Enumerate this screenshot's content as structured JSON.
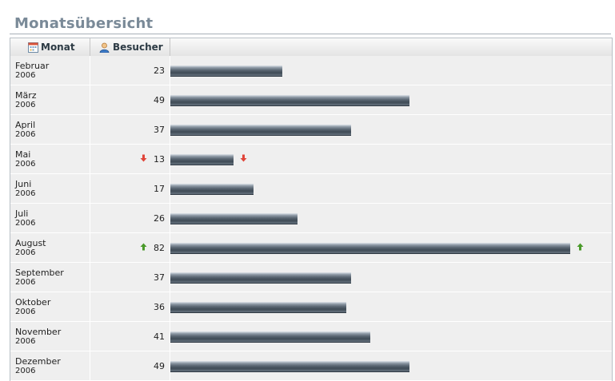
{
  "title": "Monatsübersicht",
  "header": {
    "month_label": "Monat",
    "visitors_label": "Besucher"
  },
  "colors": {
    "up": "#4a9a2a",
    "down": "#e0453a"
  },
  "rows": [
    {
      "month": "Februar",
      "year": "2006",
      "visitors": "23",
      "trend": ""
    },
    {
      "month": "März",
      "year": "2006",
      "visitors": "49",
      "trend": ""
    },
    {
      "month": "April",
      "year": "2006",
      "visitors": "37",
      "trend": ""
    },
    {
      "month": "Mai",
      "year": "2006",
      "visitors": "13",
      "trend": "down"
    },
    {
      "month": "Juni",
      "year": "2006",
      "visitors": "17",
      "trend": ""
    },
    {
      "month": "Juli",
      "year": "2006",
      "visitors": "26",
      "trend": ""
    },
    {
      "month": "August",
      "year": "2006",
      "visitors": "82",
      "trend": "up"
    },
    {
      "month": "September",
      "year": "2006",
      "visitors": "37",
      "trend": ""
    },
    {
      "month": "Oktober",
      "year": "2006",
      "visitors": "36",
      "trend": ""
    },
    {
      "month": "November",
      "year": "2006",
      "visitors": "41",
      "trend": ""
    },
    {
      "month": "Dezember",
      "year": "2006",
      "visitors": "49",
      "trend": ""
    }
  ],
  "chart_data": {
    "type": "bar",
    "categories": [
      "Februar 2006",
      "März 2006",
      "April 2006",
      "Mai 2006",
      "Juni 2006",
      "Juli 2006",
      "August 2006",
      "September 2006",
      "Oktober 2006",
      "November 2006",
      "Dezember 2006"
    ],
    "values": [
      23,
      49,
      37,
      13,
      17,
      26,
      82,
      37,
      36,
      41,
      49
    ],
    "title": "Monatsübersicht",
    "xlabel": "Monat",
    "ylabel": "Besucher",
    "ylim": [
      0,
      82
    ],
    "grid": false,
    "legend": "none"
  }
}
